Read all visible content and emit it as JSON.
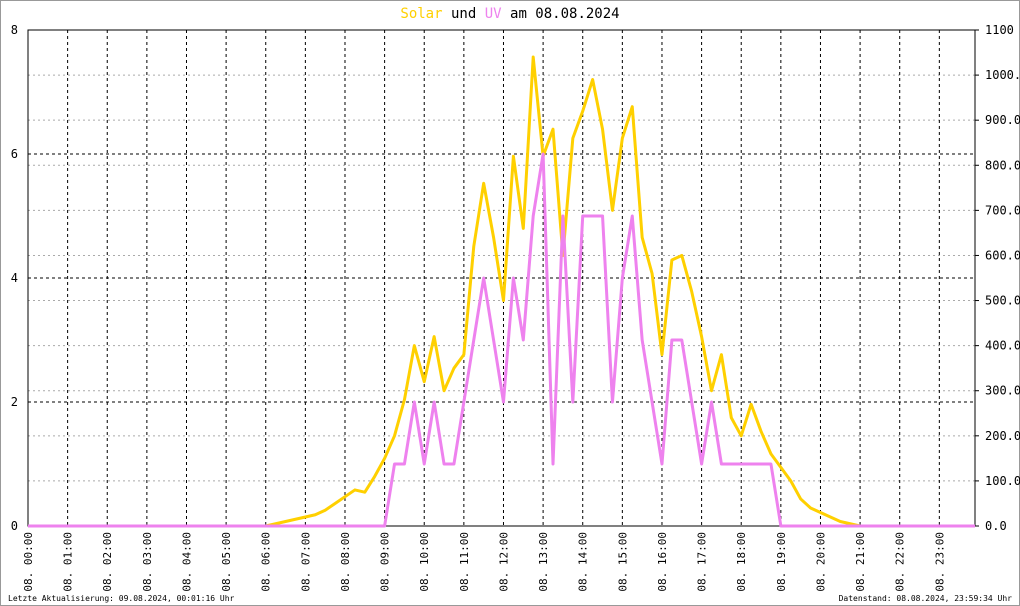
{
  "chart_data": {
    "type": "line",
    "title": {
      "conjunction": "und",
      "suffix": "am 08.08.2024"
    },
    "x": [
      0,
      6,
      6.25,
      6.5,
      6.75,
      7,
      7.25,
      7.5,
      7.75,
      8,
      8.25,
      8.5,
      8.75,
      9,
      9.25,
      9.5,
      9.75,
      10,
      10.25,
      10.5,
      10.75,
      11,
      11.25,
      11.5,
      11.75,
      12,
      12.25,
      12.5,
      12.75,
      13,
      13.25,
      13.5,
      13.75,
      14,
      14.25,
      14.5,
      14.75,
      15,
      15.25,
      15.5,
      15.75,
      16,
      16.25,
      16.5,
      16.75,
      17,
      17.25,
      17.5,
      17.75,
      18,
      18.25,
      18.5,
      18.75,
      19,
      19.25,
      19.5,
      19.75,
      20,
      20.25,
      20.5,
      20.75,
      21,
      23.9
    ],
    "series": [
      {
        "name": "Solar",
        "color": "#ffd000",
        "axis": "y2",
        "values": [
          0,
          0,
          5,
          10,
          15,
          20,
          25,
          35,
          50,
          65,
          80,
          75,
          110,
          150,
          200,
          280,
          400,
          320,
          420,
          300,
          350,
          380,
          620,
          760,
          640,
          500,
          820,
          660,
          1040,
          820,
          880,
          600,
          860,
          920,
          990,
          880,
          700,
          860,
          930,
          640,
          560,
          380,
          590,
          600,
          520,
          420,
          300,
          380,
          240,
          200,
          270,
          210,
          160,
          130,
          100,
          60,
          40,
          30,
          20,
          10,
          5,
          0,
          0
        ]
      },
      {
        "name": "UV",
        "color": "#ee82ee",
        "values": [
          0,
          0,
          0,
          0,
          0,
          0,
          0,
          0,
          0,
          0,
          0,
          0,
          0,
          0,
          1,
          1,
          2,
          1,
          2,
          1,
          1,
          2,
          3,
          4,
          3,
          2,
          4,
          3,
          5,
          6,
          1,
          5,
          2,
          5,
          5,
          5,
          2,
          4,
          5,
          3,
          2,
          1,
          3,
          3,
          2,
          1,
          2,
          1,
          1,
          1,
          1,
          1,
          1,
          0,
          0,
          0,
          0,
          0,
          0,
          0,
          0,
          0,
          0
        ]
      }
    ],
    "xlim": [
      0,
      23.9
    ],
    "xticks": [
      {
        "value": 0,
        "label": "08. 00:00"
      },
      {
        "value": 1,
        "label": "08. 01:00"
      },
      {
        "value": 2,
        "label": "08. 02:00"
      },
      {
        "value": 3,
        "label": "08. 03:00"
      },
      {
        "value": 4,
        "label": "08. 04:00"
      },
      {
        "value": 5,
        "label": "08. 05:00"
      },
      {
        "value": 6,
        "label": "08. 06:00"
      },
      {
        "value": 7,
        "label": "08. 07:00"
      },
      {
        "value": 8,
        "label": "08. 08:00"
      },
      {
        "value": 9,
        "label": "08. 09:00"
      },
      {
        "value": 10,
        "label": "08. 10:00"
      },
      {
        "value": 11,
        "label": "08. 11:00"
      },
      {
        "value": 12,
        "label": "08. 12:00"
      },
      {
        "value": 13,
        "label": "08. 13:00"
      },
      {
        "value": 14,
        "label": "08. 14:00"
      },
      {
        "value": 15,
        "label": "08. 15:00"
      },
      {
        "value": 16,
        "label": "08. 16:00"
      },
      {
        "value": 17,
        "label": "08. 17:00"
      },
      {
        "value": 18,
        "label": "08. 18:00"
      },
      {
        "value": 19,
        "label": "08. 19:00"
      },
      {
        "value": 20,
        "label": "08. 20:00"
      },
      {
        "value": 21,
        "label": "08. 21:00"
      },
      {
        "value": 22,
        "label": "08. 22:00"
      },
      {
        "value": 23,
        "label": "08. 23:00"
      }
    ],
    "ylim": [
      0,
      8
    ],
    "yticks": [
      0,
      2,
      4,
      6,
      8
    ],
    "y2lim": [
      0,
      1100
    ],
    "y2ticks": [
      {
        "value": 0,
        "label": "0.0"
      },
      {
        "value": 100,
        "label": "100.0"
      },
      {
        "value": 200,
        "label": "200.0"
      },
      {
        "value": 300,
        "label": "300.0"
      },
      {
        "value": 400,
        "label": "400.0"
      },
      {
        "value": 500,
        "label": "500.0"
      },
      {
        "value": 600,
        "label": "600.0"
      },
      {
        "value": 700,
        "label": "700.0"
      },
      {
        "value": 800,
        "label": "800.0"
      },
      {
        "value": 900,
        "label": "900.0"
      },
      {
        "value": 1000,
        "label": "1000.0"
      },
      1100
    ],
    "grid": true,
    "footer": {
      "left": "Letzte Aktualisierung: 09.08.2024, 00:01:16 Uhr",
      "right": "Datenstand: 08.08.2024, 23:59:34 Uhr"
    }
  }
}
